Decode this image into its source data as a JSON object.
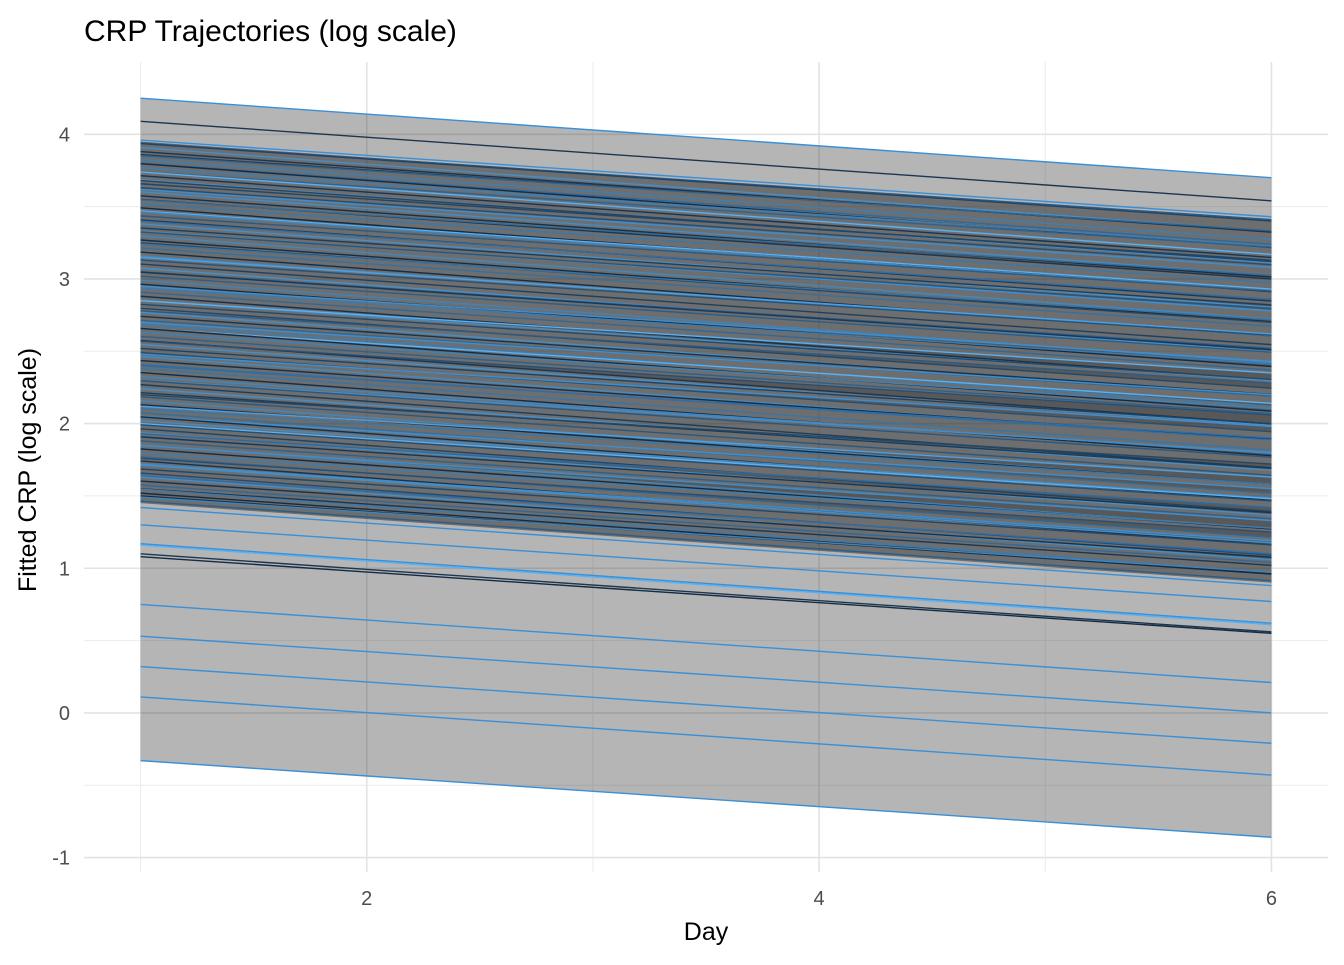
{
  "chart_data": {
    "type": "line",
    "title": "CRP Trajectories (log scale)",
    "xlabel": "Day",
    "ylabel": "Fitted CRP (log scale)",
    "xlim": [
      0.75,
      6.25
    ],
    "ylim": [
      -1.1,
      4.5
    ],
    "x_ticks": [
      2,
      4,
      6
    ],
    "x_tick_labels": [
      "2",
      "4",
      "6"
    ],
    "y_ticks": [
      -1,
      0,
      1,
      2,
      3,
      4
    ],
    "y_tick_labels": [
      "-1",
      "0",
      "1",
      "2",
      "3",
      "4"
    ],
    "grid": true,
    "legend": "none",
    "x_start": 1,
    "x_end": 6,
    "line_color_range": [
      "#132B43",
      "#56B1F7"
    ],
    "ribbon_color": "#333333",
    "ribbon_opacity": 0.2,
    "highlighted_series": [
      {
        "start": 4.25,
        "end": 3.7,
        "color": "#3a8fd6"
      },
      {
        "start": 4.09,
        "end": 3.54,
        "color": "#1c3650"
      },
      {
        "start": 3.96,
        "end": 3.43,
        "color": "#3a8fd6"
      },
      {
        "start": 3.94,
        "end": 3.41,
        "color": "#2b5a86"
      },
      {
        "start": 3.86,
        "end": 3.33,
        "color": "#1d3a57"
      },
      {
        "start": 3.8,
        "end": 3.24,
        "color": "#2a6aa4"
      },
      {
        "start": 3.74,
        "end": 3.17,
        "color": "#56b1f7"
      },
      {
        "start": 3.68,
        "end": 3.12,
        "color": "#224466"
      },
      {
        "start": 3.62,
        "end": 3.08,
        "color": "#3d8ed0"
      },
      {
        "start": 3.55,
        "end": 3.0,
        "color": "#1c3650"
      },
      {
        "start": 3.47,
        "end": 2.93,
        "color": "#56b1f7"
      },
      {
        "start": 3.4,
        "end": 2.86,
        "color": "#2e6da8"
      },
      {
        "start": 3.33,
        "end": 2.78,
        "color": "#3a8fd6"
      },
      {
        "start": 3.25,
        "end": 2.7,
        "color": "#234766"
      },
      {
        "start": 3.15,
        "end": 2.62,
        "color": "#4aa0e6"
      },
      {
        "start": 3.05,
        "end": 2.52,
        "color": "#2a5c8c"
      },
      {
        "start": 2.95,
        "end": 2.43,
        "color": "#3a8fd6"
      },
      {
        "start": 2.85,
        "end": 2.35,
        "color": "#56b1f7"
      },
      {
        "start": 2.78,
        "end": 2.28,
        "color": "#2b5a86"
      },
      {
        "start": 2.7,
        "end": 2.2,
        "color": "#3d8ed0"
      },
      {
        "start": 2.66,
        "end": 2.14,
        "color": "#56b1f7"
      },
      {
        "start": 2.57,
        "end": 2.06,
        "color": "#264f78"
      },
      {
        "start": 2.48,
        "end": 1.98,
        "color": "#3a8fd6"
      },
      {
        "start": 2.4,
        "end": 1.9,
        "color": "#2e6da8"
      },
      {
        "start": 2.3,
        "end": 1.8,
        "color": "#3d8ed0"
      },
      {
        "start": 2.2,
        "end": 1.72,
        "color": "#234766"
      },
      {
        "start": 2.12,
        "end": 1.63,
        "color": "#4aa0e6"
      },
      {
        "start": 2.05,
        "end": 1.55,
        "color": "#3a8fd6"
      },
      {
        "start": 2.0,
        "end": 1.48,
        "color": "#56b1f7"
      },
      {
        "start": 1.93,
        "end": 1.42,
        "color": "#2a6aa4"
      },
      {
        "start": 1.85,
        "end": 1.33,
        "color": "#3d8ed0"
      },
      {
        "start": 1.76,
        "end": 1.25,
        "color": "#264f78"
      },
      {
        "start": 1.72,
        "end": 1.19,
        "color": "#3a8fd6"
      },
      {
        "start": 1.64,
        "end": 1.1,
        "color": "#2e6da8"
      },
      {
        "start": 1.55,
        "end": 1.02,
        "color": "#1c3650"
      },
      {
        "start": 1.5,
        "end": 0.96,
        "color": "#132b43"
      },
      {
        "start": 1.42,
        "end": 0.88,
        "color": "#3a8fd6"
      },
      {
        "start": 1.3,
        "end": 0.77,
        "color": "#3a8fd6"
      },
      {
        "start": 1.17,
        "end": 0.62,
        "color": "#3a8fd6"
      },
      {
        "start": 1.16,
        "end": 0.61,
        "color": "#56b1f7"
      },
      {
        "start": 1.1,
        "end": 0.56,
        "color": "#1c3650"
      },
      {
        "start": 1.08,
        "end": 0.55,
        "color": "#132b43"
      },
      {
        "start": 0.75,
        "end": 0.21,
        "color": "#3a8fd6"
      },
      {
        "start": 0.53,
        "end": 0.0,
        "color": "#3a8fd6"
      },
      {
        "start": 0.32,
        "end": -0.21,
        "color": "#3a8fd6"
      },
      {
        "start": 0.11,
        "end": -0.43,
        "color": "#3a8fd6"
      },
      {
        "start": -0.33,
        "end": -0.86,
        "color": "#3a8fd6"
      }
    ],
    "dense_band": {
      "start_low": 1.45,
      "start_high": 3.95,
      "end_low": 0.9,
      "end_high": 3.4,
      "count": 90
    }
  }
}
